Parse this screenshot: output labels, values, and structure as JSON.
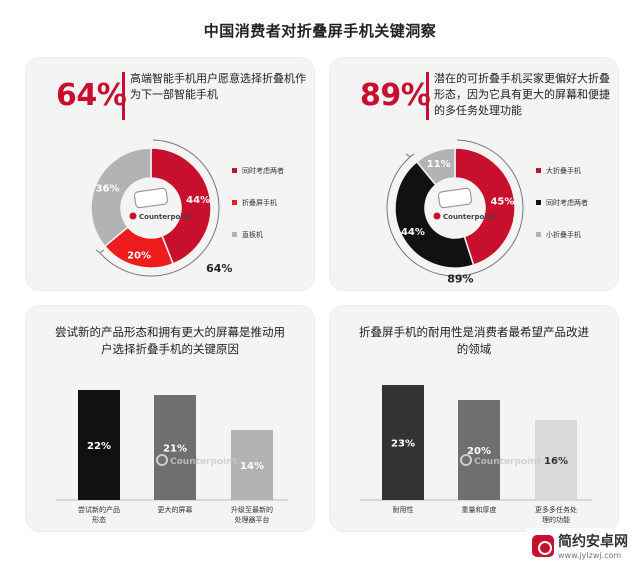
{
  "page_title": "中国消费者对折叠屏手机关键洞察",
  "panels": {
    "top_left": {
      "big_percent": "64%",
      "text": "高端智能手机用户愿意选择折叠机作为下一部智能手机",
      "outer_label": "64%"
    },
    "top_right": {
      "big_percent": "89%",
      "text": "潜在的可折叠手机买家更偏好大折叠形态，因为它具有更大的屏幕和便捷的多任务处理功能",
      "outer_label": "89%"
    },
    "bottom_left": {
      "title": "尝试新的产品形态和拥有更大的屏幕是推动用户选择折叠手机的关键原因"
    },
    "bottom_right": {
      "title": "折叠屏手机的耐用性是消费者最希望产品改进的领域"
    }
  },
  "logo_text": "Counterpoint",
  "watermark": {
    "name": "简约安卓网",
    "url": "www.jylzwj.com"
  },
  "colors": {
    "red": "#c8102e",
    "black": "#111111",
    "gray": "#b3b3b3",
    "dark_gray": "#6f6f6f",
    "light_gray": "#d9d9d9"
  },
  "chart_data": [
    {
      "type": "pie",
      "style": "donut",
      "labels": [
        "同时考虑两者",
        "折叠屏手机",
        "直板机"
      ],
      "values": [
        44,
        20,
        36
      ],
      "value_labels": [
        "44%",
        "20%",
        "36%"
      ],
      "colors": [
        "#c8102e",
        "#ee1c1c",
        "#b3b3b3"
      ],
      "legend_position": "right",
      "annotation": "64%"
    },
    {
      "type": "pie",
      "style": "donut",
      "labels": [
        "大折叠手机",
        "同时考虑两者",
        "小折叠手机"
      ],
      "values": [
        45,
        44,
        11
      ],
      "value_labels": [
        "45%",
        "44%",
        "11%"
      ],
      "colors": [
        "#c8102e",
        "#111111",
        "#b3b3b3"
      ],
      "legend_position": "right",
      "annotation": "89%"
    },
    {
      "type": "bar",
      "categories": [
        "尝试新的产品形态",
        "更大的屏幕",
        "升级至最新的处理器平台"
      ],
      "values": [
        22,
        21,
        14
      ],
      "value_labels": [
        "22%",
        "21%",
        "14%"
      ],
      "colors": [
        "#111111",
        "#6f6f6f",
        "#b3b3b3"
      ],
      "ylim": [
        0,
        24
      ]
    },
    {
      "type": "bar",
      "categories": [
        "耐用性",
        "重量和厚度",
        "更多多任务处理的功能"
      ],
      "values": [
        23,
        20,
        16
      ],
      "value_labels": [
        "23%",
        "20%",
        "16%"
      ],
      "colors": [
        "#333333",
        "#6f6f6f",
        "#d9d9d9"
      ],
      "ylim": [
        0,
        24
      ]
    }
  ]
}
